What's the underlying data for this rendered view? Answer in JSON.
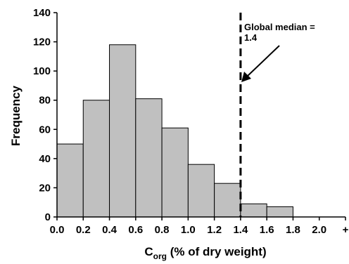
{
  "chart_data": {
    "type": "bar",
    "title": "",
    "xlabel_main": "C",
    "xlabel_sub": "org",
    "xlabel_rest": " (% of dry weight)",
    "ylabel": "Frequency",
    "x_tick_labels": [
      "0.0",
      "0.2",
      "0.4",
      "0.6",
      "0.8",
      "1.0",
      "1.2",
      "1.4",
      "1.6",
      "1.8",
      "2.0",
      "+"
    ],
    "y_tick_labels": [
      "0",
      "20",
      "40",
      "60",
      "80",
      "100",
      "120",
      "140"
    ],
    "ylim": [
      0,
      140
    ],
    "bin_edges": [
      0.0,
      0.2,
      0.4,
      0.6,
      0.8,
      1.0,
      1.2,
      1.4,
      1.6,
      1.8,
      2.0,
      2.2
    ],
    "values": [
      50,
      80,
      118,
      81,
      61,
      36,
      23,
      9,
      7,
      0,
      0
    ],
    "bar_color": "#c0c0c0",
    "grid": false,
    "reference_line": {
      "x": 1.4,
      "style": "dashed",
      "label_line1": "Global median =",
      "label_line2": "1.4"
    }
  }
}
